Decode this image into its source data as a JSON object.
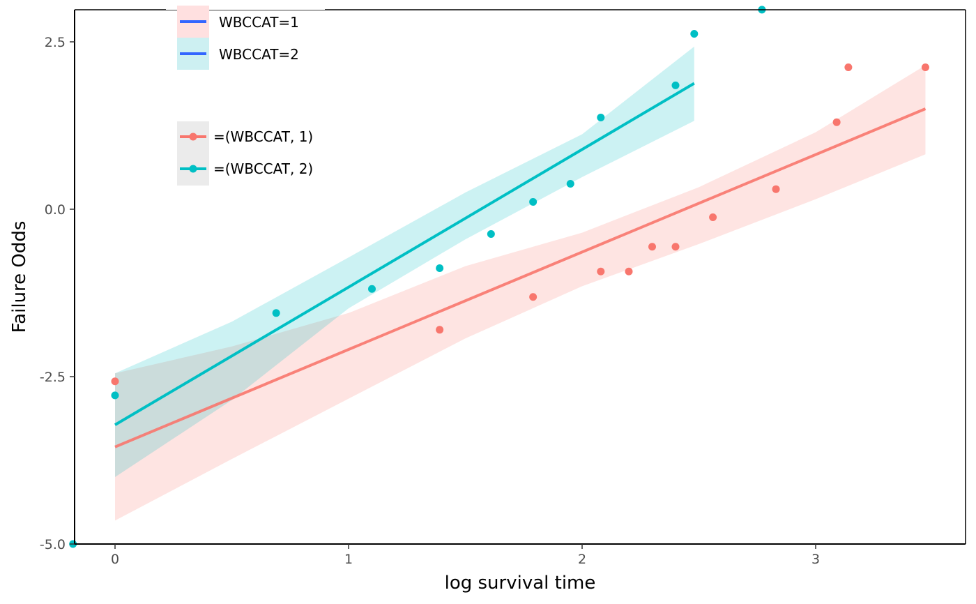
{
  "chart_data": {
    "type": "scatter",
    "xlabel": "log survival time",
    "ylabel": "Failure Odds",
    "xlim": [
      -0.18,
      3.63
    ],
    "ylim": [
      -5.0,
      3.0
    ],
    "x_ticks": [
      0,
      1,
      2,
      3
    ],
    "x_tick_labels": [
      "0",
      "1",
      "2",
      "3"
    ],
    "y_ticks": [
      -5.0,
      -2.5,
      0.0,
      2.5
    ],
    "y_tick_labels": [
      "-5.0",
      "-2.5",
      "0.0",
      "2.5"
    ],
    "grid": false,
    "legend_fit": {
      "entries": [
        "WBCCAT=1",
        "WBCCAT=2"
      ],
      "line_color": "#3366FF",
      "key_fill": [
        "#FFE0E0",
        "#CDF0F2"
      ]
    },
    "legend_points": {
      "entries": [
        "=(WBCCAT, 1)",
        "=(WBCCAT, 2)"
      ]
    },
    "series": [
      {
        "name": "=(WBCCAT, 1)",
        "color": "#F8766D",
        "band_color": "#FFE0E0",
        "points": [
          [
            0.0,
            -2.57
          ],
          [
            1.39,
            -1.8
          ],
          [
            1.79,
            -1.31
          ],
          [
            2.08,
            -0.93
          ],
          [
            2.2,
            -0.93
          ],
          [
            2.3,
            -0.56
          ],
          [
            2.4,
            -0.56
          ],
          [
            2.56,
            -0.12
          ],
          [
            2.83,
            0.3
          ],
          [
            3.09,
            1.3
          ],
          [
            3.14,
            2.12
          ],
          [
            3.47,
            2.12
          ]
        ],
        "fit": {
          "x": [
            0.0,
            3.47
          ],
          "y": [
            -3.55,
            1.5
          ]
        },
        "band": {
          "x": [
            0.0,
            0.5,
            1.0,
            1.5,
            2.0,
            2.5,
            3.0,
            3.47
          ],
          "lower": [
            -4.65,
            -3.73,
            -2.83,
            -1.93,
            -1.15,
            -0.52,
            0.15,
            0.82
          ],
          "upper": [
            -2.45,
            -2.05,
            -1.55,
            -0.85,
            -0.35,
            0.33,
            1.15,
            2.15
          ]
        }
      },
      {
        "name": "=(WBCCAT, 2)",
        "color": "#00BFC4",
        "band_color": "#CDF0F2",
        "points": [
          [
            0.0,
            -2.78
          ],
          [
            0.69,
            -1.55
          ],
          [
            1.1,
            -1.19
          ],
          [
            1.39,
            -0.88
          ],
          [
            1.61,
            -0.37
          ],
          [
            1.79,
            0.11
          ],
          [
            1.95,
            0.38
          ],
          [
            2.08,
            1.37
          ],
          [
            2.4,
            1.85
          ],
          [
            2.48,
            2.62
          ],
          [
            2.77,
            2.98
          ],
          [
            -0.18,
            -5.0
          ]
        ],
        "fit": {
          "x": [
            0.0,
            2.48
          ],
          "y": [
            -3.22,
            1.88
          ]
        },
        "band": {
          "x": [
            0.0,
            0.5,
            1.0,
            1.5,
            2.0,
            2.48
          ],
          "lower": [
            -4.0,
            -2.85,
            -1.48,
            -0.45,
            0.48,
            1.32
          ],
          "upper": [
            -2.45,
            -1.68,
            -0.72,
            0.25,
            1.12,
            2.43
          ]
        }
      }
    ]
  }
}
